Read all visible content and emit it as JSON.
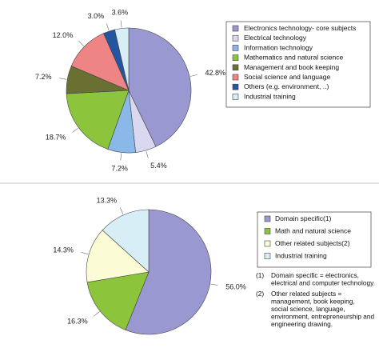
{
  "chart_data": [
    {
      "type": "pie",
      "title": "",
      "legend_position": "right",
      "series": [
        {
          "name": "Electronics technology- core subjects",
          "value": 42.8,
          "label": "42.8%",
          "color": "#9a98d0"
        },
        {
          "name": "Electrical technology",
          "value": 5.4,
          "label": "5.4%",
          "color": "#d9d8f0"
        },
        {
          "name": "Information technology",
          "value": 7.2,
          "label": "7.2%",
          "color": "#8ab8e8"
        },
        {
          "name": "Mathematics and natural science",
          "value": 18.7,
          "label": "18.7%",
          "color": "#8cc43c"
        },
        {
          "name": "Management and book keeping",
          "value": 7.2,
          "label": "7.2%",
          "color": "#6a7032"
        },
        {
          "name": "Social science and language",
          "value": 12.0,
          "label": "12.0%",
          "color": "#ee8484"
        },
        {
          "name": "Others (e.g. environment, ..)",
          "value": 3.0,
          "label": "3.0%",
          "color": "#2455a0"
        },
        {
          "name": "Industrial training",
          "value": 3.6,
          "label": "3.6%",
          "color": "#d8eef6"
        }
      ]
    },
    {
      "type": "pie",
      "title": "",
      "legend_position": "right",
      "series": [
        {
          "name": "Domain specific(1)",
          "value": 56.0,
          "label": "56.0%",
          "color": "#9a98d0"
        },
        {
          "name": "Math and natural science",
          "value": 16.3,
          "label": "16.3%",
          "color": "#8cc43c"
        },
        {
          "name": "Other related subjects(2)",
          "value": 14.3,
          "label": "14.3%",
          "color": "#fbfbd6"
        },
        {
          "name": "Industrial training",
          "value": 13.3,
          "label": "13.3%",
          "color": "#d8eef6"
        }
      ]
    }
  ],
  "notes": [
    {
      "marker": "(1)",
      "lines": [
        "Domain specific = electronics,",
        "electrical and computer technology."
      ]
    },
    {
      "marker": "(2)",
      "lines": [
        "Other related subjects =",
        "management, book keeping,",
        "social science, language,",
        "environment, entrepreneurship and",
        "engineering drawing."
      ]
    }
  ]
}
